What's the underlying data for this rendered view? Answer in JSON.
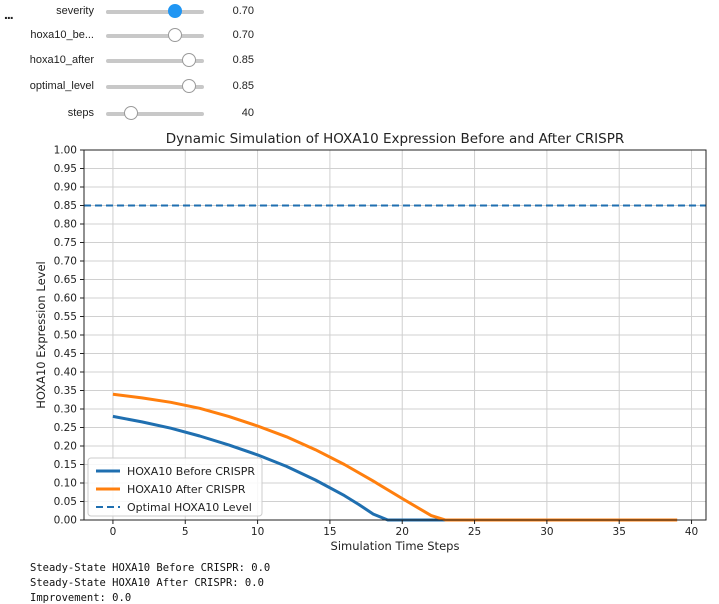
{
  "toolbar": {
    "ellipsis": "..."
  },
  "sliders": [
    {
      "label": "severity",
      "value_text": "0.70",
      "fraction": 0.7,
      "active": true
    },
    {
      "label": "hoxa10_be...",
      "value_text": "0.70",
      "fraction": 0.7,
      "active": false
    },
    {
      "label": "hoxa10_after",
      "value_text": "0.85",
      "fraction": 0.85,
      "active": false
    },
    {
      "label": "optimal_level",
      "value_text": "0.85",
      "fraction": 0.85,
      "active": false
    },
    {
      "label": "steps",
      "value_text": "40",
      "fraction": 0.26,
      "active": false
    }
  ],
  "colors": {
    "before": "#1f6fb0",
    "after": "#ff7f0e",
    "optimal": "#1f6fb0",
    "slider_active": "#2196f3"
  },
  "chart_data": {
    "type": "line",
    "title": "Dynamic Simulation of HOXA10 Expression Before and After CRISPR",
    "xlabel": "Simulation Time Steps",
    "ylabel": "HOXA10 Expression Level",
    "xlim": [
      -2,
      41
    ],
    "ylim": [
      0,
      1.0
    ],
    "xticks": [
      0,
      5,
      10,
      15,
      20,
      25,
      30,
      35,
      40
    ],
    "yticks": [
      0.0,
      0.05,
      0.1,
      0.15,
      0.2,
      0.25,
      0.3,
      0.35,
      0.4,
      0.45,
      0.5,
      0.55,
      0.6,
      0.65,
      0.7,
      0.75,
      0.8,
      0.85,
      0.9,
      0.95,
      1.0
    ],
    "grid": true,
    "legend_position": "lower-left",
    "series": [
      {
        "name": "HOXA10 Before CRISPR",
        "style": "solid",
        "x": [
          0,
          2,
          4,
          6,
          8,
          10,
          12,
          14,
          16,
          17,
          18,
          19,
          20,
          39
        ],
        "y": [
          0.28,
          0.265,
          0.248,
          0.227,
          0.203,
          0.176,
          0.145,
          0.108,
          0.066,
          0.042,
          0.016,
          0.0,
          0.0,
          0.0
        ]
      },
      {
        "name": "HOXA10 After CRISPR",
        "style": "solid",
        "x": [
          0,
          2,
          4,
          6,
          8,
          10,
          12,
          14,
          16,
          18,
          20,
          22,
          23,
          39
        ],
        "y": [
          0.34,
          0.33,
          0.318,
          0.302,
          0.28,
          0.254,
          0.225,
          0.19,
          0.15,
          0.105,
          0.058,
          0.012,
          0.0,
          0.0
        ]
      },
      {
        "name": "Optimal HOXA10 Level",
        "style": "dashed",
        "hline": 0.85
      }
    ]
  },
  "readout": {
    "line1": "Steady-State HOXA10 Before CRISPR: 0.0",
    "line2": "Steady-State HOXA10 After CRISPR: 0.0",
    "line3": "Improvement: 0.0"
  }
}
